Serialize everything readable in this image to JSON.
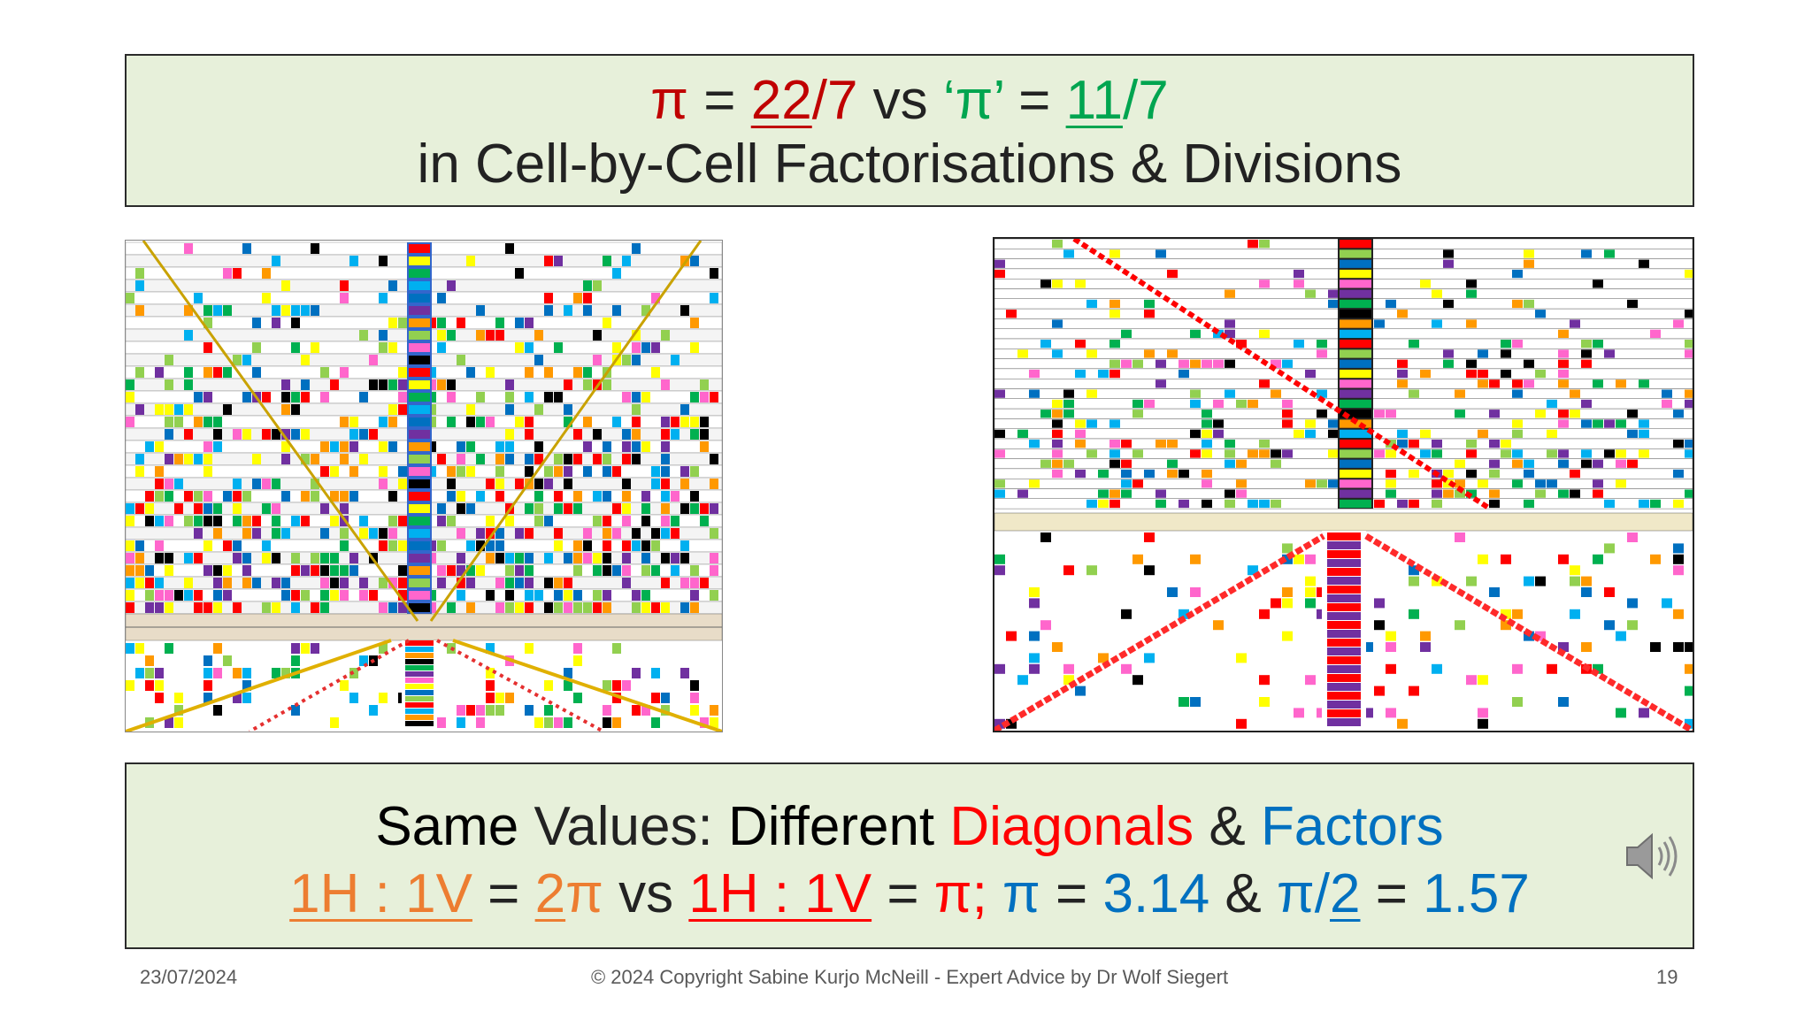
{
  "title": {
    "pi": "π",
    "eq1": " = ",
    "frac1_num": "22",
    "frac1_rest": "/7",
    "vs": " vs ",
    "pi2": "‘π’",
    "eq2": " = ",
    "frac2_num": "11",
    "frac2_rest": "/7",
    "line2": "in Cell-by-Cell Factorisations & Divisions"
  },
  "summary": {
    "same": "Same",
    "values": " Values: ",
    "different": "Different",
    "diagonals": " Diagonals",
    "amp1": " & ",
    "factors": "Factors",
    "ratio1": "1H : 1V",
    "eq_a": " = ",
    "two": "2",
    "pi_a": "π",
    "vs": " vs ",
    "ratio2": "1H : 1V",
    "eq_b": " = ",
    "pi_b": "π;",
    "pi_c": " π",
    "eq_c": " = ",
    "val1": "3.14",
    "amp2": " & ",
    "pi_d": "π/",
    "two_b": "2",
    "eq_d": " = ",
    "val2": "1.57"
  },
  "footer": {
    "date": "23/07/2024",
    "copyright": "© 2024 Copyright Sabine Kurjo McNeill - Expert Advice by Dr Wolf Siegert",
    "page": "19"
  },
  "images": {
    "left": "spreadsheet-grid-left",
    "right": "spreadsheet-grid-right"
  },
  "icons": {
    "speaker": "speaker-icon"
  },
  "colors": {
    "box_bg": "#e7f0da",
    "red": "#c00000",
    "green": "#00a550",
    "orange": "#ed7d31",
    "bright_red": "#ff0000",
    "blue": "#0070c0"
  }
}
